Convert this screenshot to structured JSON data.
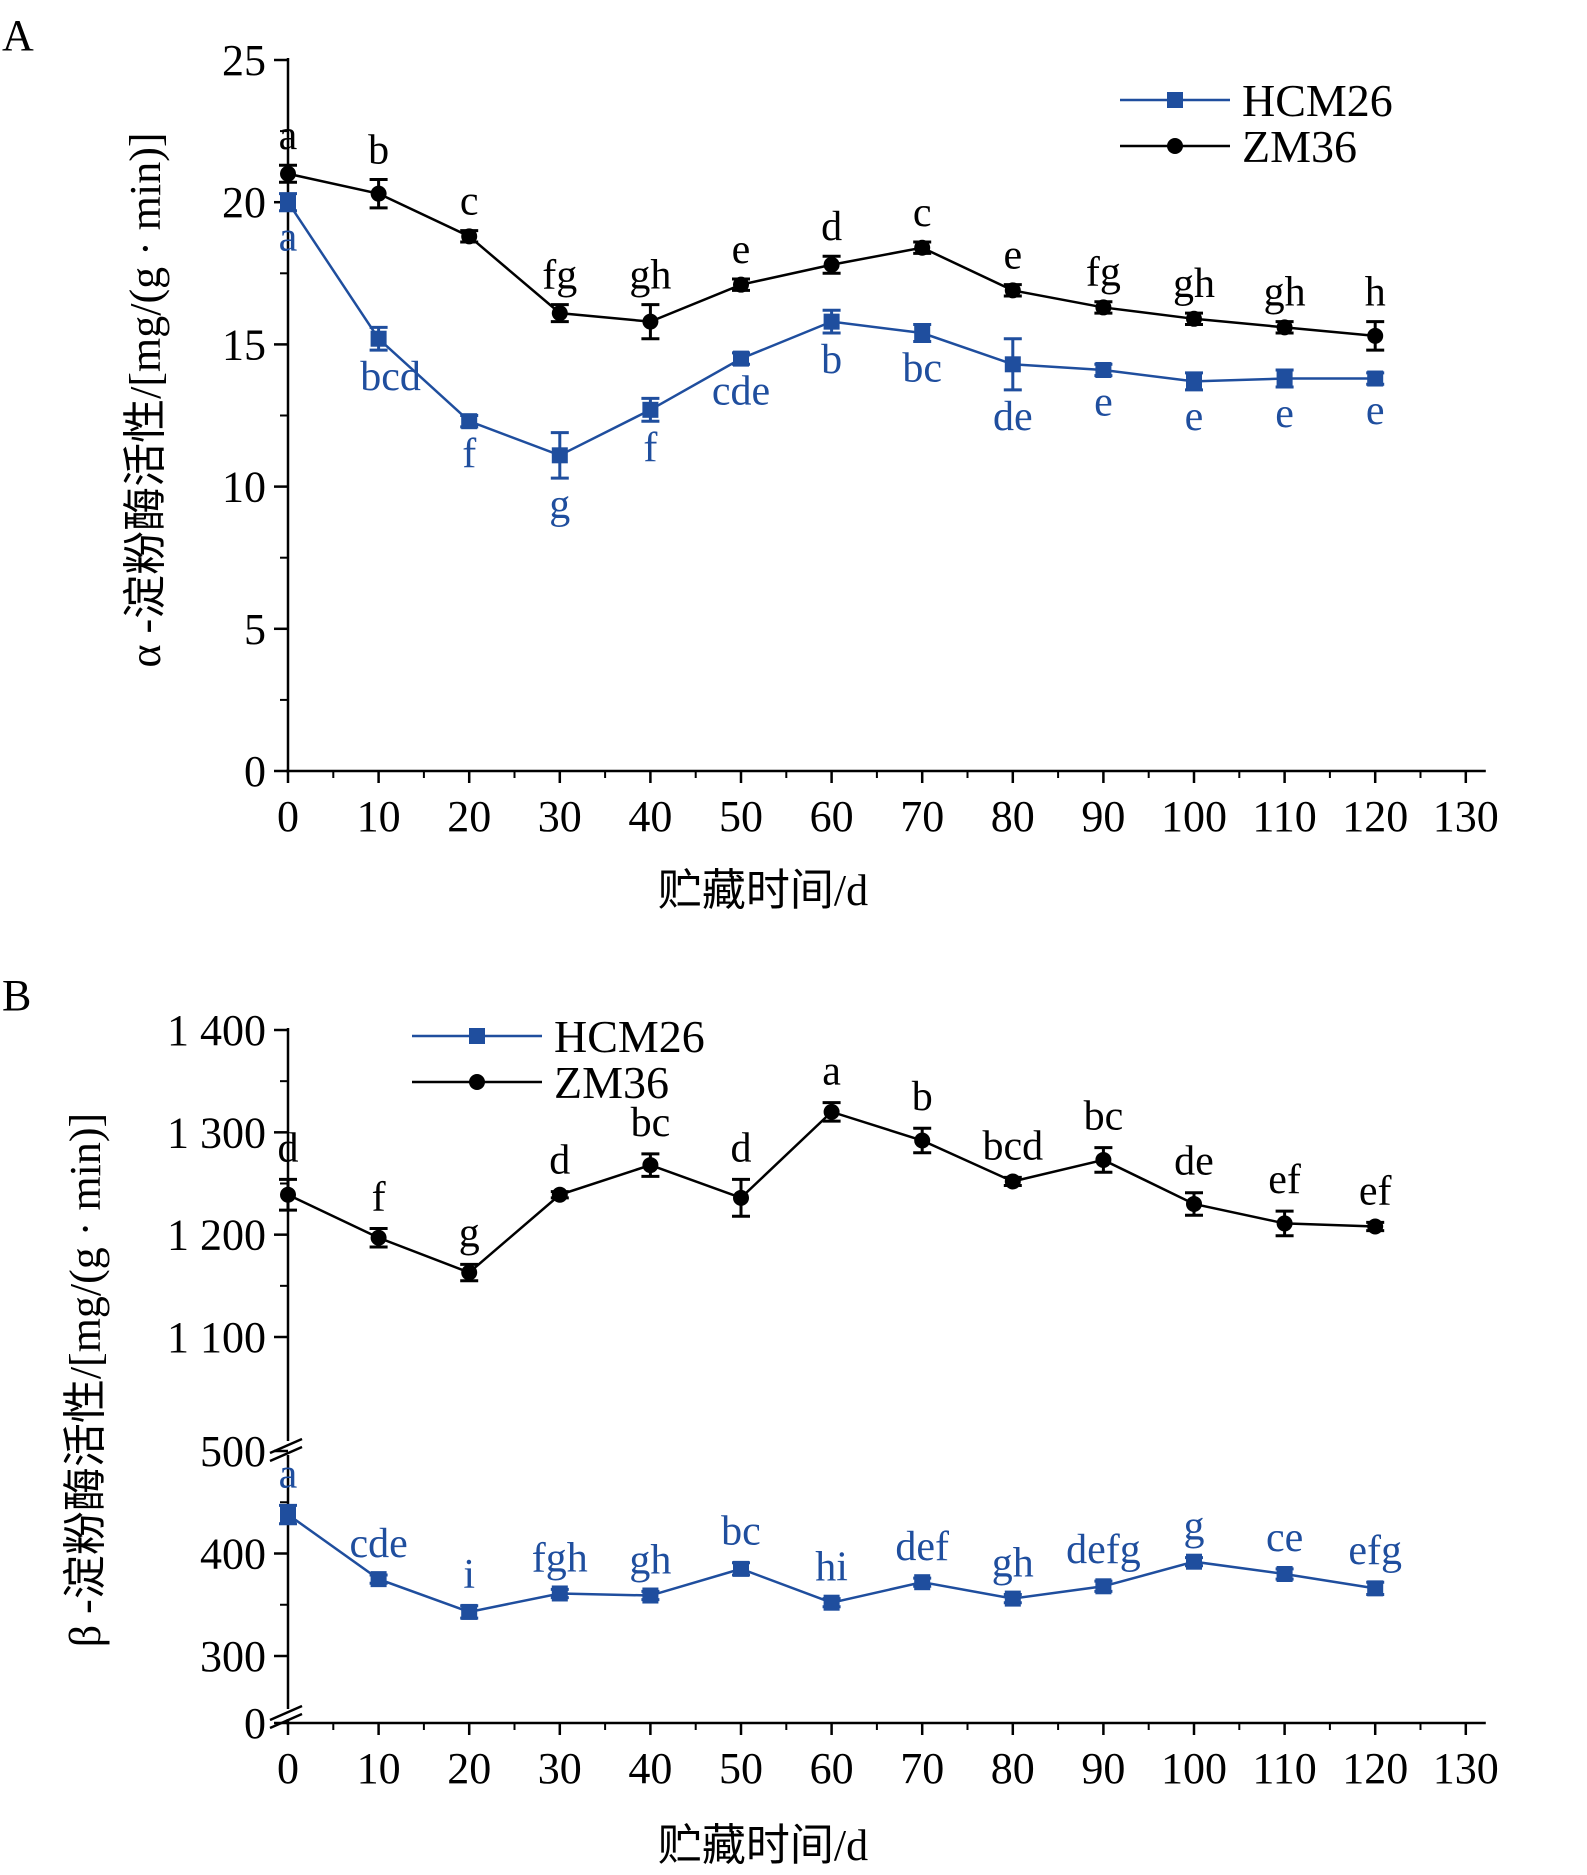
{
  "chart_data": [
    {
      "type": "line",
      "panel_label": "A",
      "ylabel": "α -淀粉酶活性/[mg/(g · min)]",
      "xlabel": "贮藏时间/d",
      "xlim": [
        0,
        130
      ],
      "ylim": [
        0,
        25
      ],
      "x_ticks": [
        "0",
        "10",
        "20",
        "30",
        "40",
        "50",
        "60",
        "70",
        "80",
        "90",
        "100",
        "110",
        "120",
        "130"
      ],
      "y_ticks": [
        "0",
        "5",
        "10",
        "15",
        "20",
        "25"
      ],
      "x": [
        0,
        10,
        20,
        30,
        40,
        50,
        60,
        70,
        80,
        90,
        100,
        110,
        120
      ],
      "legend_position": "top-right",
      "series": [
        {
          "name": "HCM26",
          "color": "#1f4e9e",
          "marker": "square",
          "values": [
            20.0,
            15.2,
            12.3,
            11.1,
            12.7,
            14.5,
            15.8,
            15.4,
            14.3,
            14.1,
            13.7,
            13.8,
            13.8
          ],
          "errors": [
            0.3,
            0.4,
            0.2,
            0.8,
            0.4,
            0.2,
            0.4,
            0.3,
            0.9,
            0.2,
            0.3,
            0.3,
            0.2
          ],
          "letters": [
            "a",
            "bcd",
            "f",
            "g",
            "f",
            "cde",
            "b",
            "bc",
            "de",
            "e",
            "e",
            "e",
            "e"
          ]
        },
        {
          "name": "ZM36",
          "color": "#000000",
          "marker": "circle",
          "values": [
            21.0,
            20.3,
            18.8,
            16.1,
            15.8,
            17.1,
            17.8,
            18.4,
            16.9,
            16.3,
            15.9,
            15.6,
            15.3
          ],
          "errors": [
            0.3,
            0.5,
            0.2,
            0.3,
            0.6,
            0.2,
            0.3,
            0.2,
            0.2,
            0.2,
            0.2,
            0.2,
            0.5
          ],
          "letters": [
            "a",
            "b",
            "c",
            "fg",
            "gh",
            "e",
            "d",
            "c",
            "e",
            "fg",
            "gh",
            "gh",
            "h"
          ]
        }
      ]
    },
    {
      "type": "line",
      "panel_label": "B",
      "ylabel": "β -淀粉酶活性/[mg/(g · min)]",
      "xlabel": "贮藏时间/d",
      "xlim": [
        0,
        130
      ],
      "ylim_lower": [
        0,
        500
      ],
      "ylim_upper": [
        1100,
        1400
      ],
      "x_ticks": [
        "0",
        "10",
        "20",
        "30",
        "40",
        "50",
        "60",
        "70",
        "80",
        "90",
        "100",
        "110",
        "120",
        "130"
      ],
      "y_ticks_lower": [
        "0",
        "300",
        "400",
        "500"
      ],
      "y_ticks_upper": [
        "1 100",
        "1 200",
        "1 300",
        "1 400"
      ],
      "x": [
        0,
        10,
        20,
        30,
        40,
        50,
        60,
        70,
        80,
        90,
        100,
        110,
        120
      ],
      "legend_position": "top-left",
      "series": [
        {
          "name": "HCM26",
          "color": "#1f4e9e",
          "marker": "square",
          "values": [
            438,
            375,
            343,
            361,
            359,
            385,
            352,
            372,
            356,
            368,
            392,
            380,
            366
          ],
          "errors": [
            9,
            4,
            6,
            4,
            4,
            6,
            4,
            4,
            4,
            5,
            4,
            5,
            6
          ],
          "letters": [
            "a",
            "cde",
            "i",
            "fgh",
            "gh",
            "bc",
            "hi",
            "def",
            "gh",
            "defg",
            "g",
            "ce",
            "efg"
          ]
        },
        {
          "name": "ZM36",
          "color": "#000000",
          "marker": "circle",
          "values": [
            1239,
            1197,
            1163,
            1239,
            1268,
            1236,
            1320,
            1292,
            1252,
            1273,
            1230,
            1211,
            1208
          ],
          "errors": [
            15,
            9,
            8,
            3,
            11,
            18,
            9,
            12,
            4,
            12,
            11,
            12,
            4
          ],
          "letters": [
            "d",
            "f",
            "g",
            "d",
            "bc",
            "d",
            "a",
            "b",
            "bcd",
            "bc",
            "de",
            "ef",
            "ef"
          ]
        }
      ]
    }
  ]
}
